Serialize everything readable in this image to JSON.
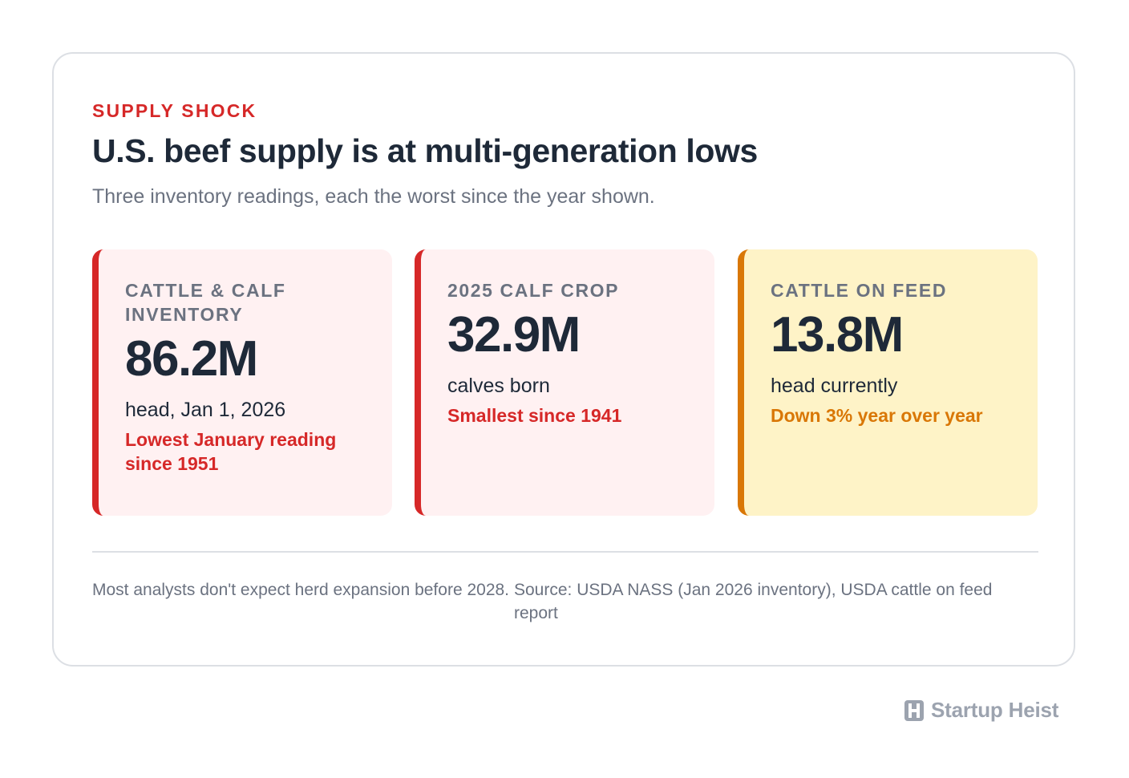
{
  "card": {
    "eyebrow": "SUPPLY SHOCK",
    "title": "U.S. beef supply is at multi-generation lows",
    "subtitle": "Three inventory readings, each the worst since the year shown."
  },
  "stats": [
    {
      "label": "CATTLE & CALF INVENTORY",
      "value": "86.2M",
      "unit": "head, Jan 1, 2026",
      "note": "Lowest January reading since 1951",
      "accent": "#d62828"
    },
    {
      "label": "2025 CALF CROP",
      "value": "32.9M",
      "unit": "calves born",
      "note": "Smallest since 1941",
      "accent": "#d62828"
    },
    {
      "label": "CATTLE ON FEED",
      "value": "13.8M",
      "unit": "head currently",
      "note": "Down 3% year over year",
      "accent": "#d97706"
    }
  ],
  "footer": {
    "note": "Most analysts don't expect herd expansion before 2028.",
    "source": "Source: USDA NASS (Jan 2026 inventory), USDA cattle on feed report"
  },
  "brand": {
    "name": "Startup Heist",
    "icon": "h-logo-icon"
  }
}
